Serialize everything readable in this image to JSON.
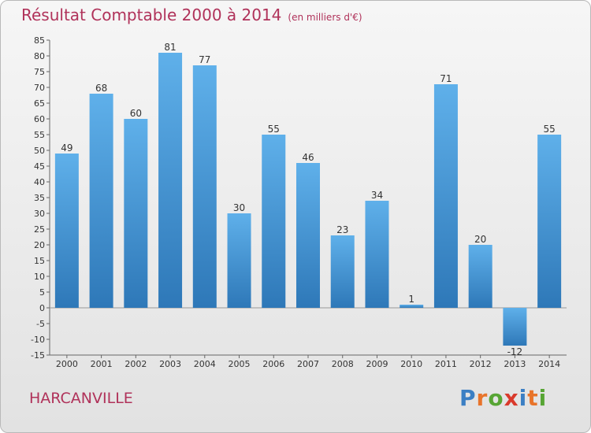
{
  "title": "Résultat Comptable 2000 à 2014",
  "unit": "(en milliers d'€)",
  "commune": "HARCANVILLE",
  "logo": {
    "text": "Proxiti",
    "colors": [
      "#3b7fc4",
      "#e8742b",
      "#57a534",
      "#d93a2c",
      "#3b7fc4",
      "#e8742b",
      "#57a534"
    ]
  },
  "colors": {
    "bar_top": "#5fb0ea",
    "bar_bottom": "#2e78b8",
    "title": "#b0325a"
  },
  "chart_data": {
    "type": "bar",
    "categories": [
      "2000",
      "2001",
      "2002",
      "2003",
      "2004",
      "2005",
      "2006",
      "2007",
      "2008",
      "2009",
      "2010",
      "2011",
      "2012",
      "2013",
      "2014"
    ],
    "values": [
      49,
      68,
      60,
      81,
      77,
      30,
      55,
      46,
      23,
      34,
      1,
      71,
      20,
      -12,
      55
    ],
    "title": "Résultat Comptable 2000 à 2014",
    "subtitle": "(en milliers d'€)",
    "xlabel": "",
    "ylabel": "",
    "ylim": [
      -15,
      85
    ],
    "yticks": [
      -15,
      -10,
      -5,
      0,
      5,
      10,
      15,
      20,
      25,
      30,
      35,
      40,
      45,
      50,
      55,
      60,
      65,
      70,
      75,
      80,
      85
    ],
    "grid": false,
    "legend": "none"
  }
}
